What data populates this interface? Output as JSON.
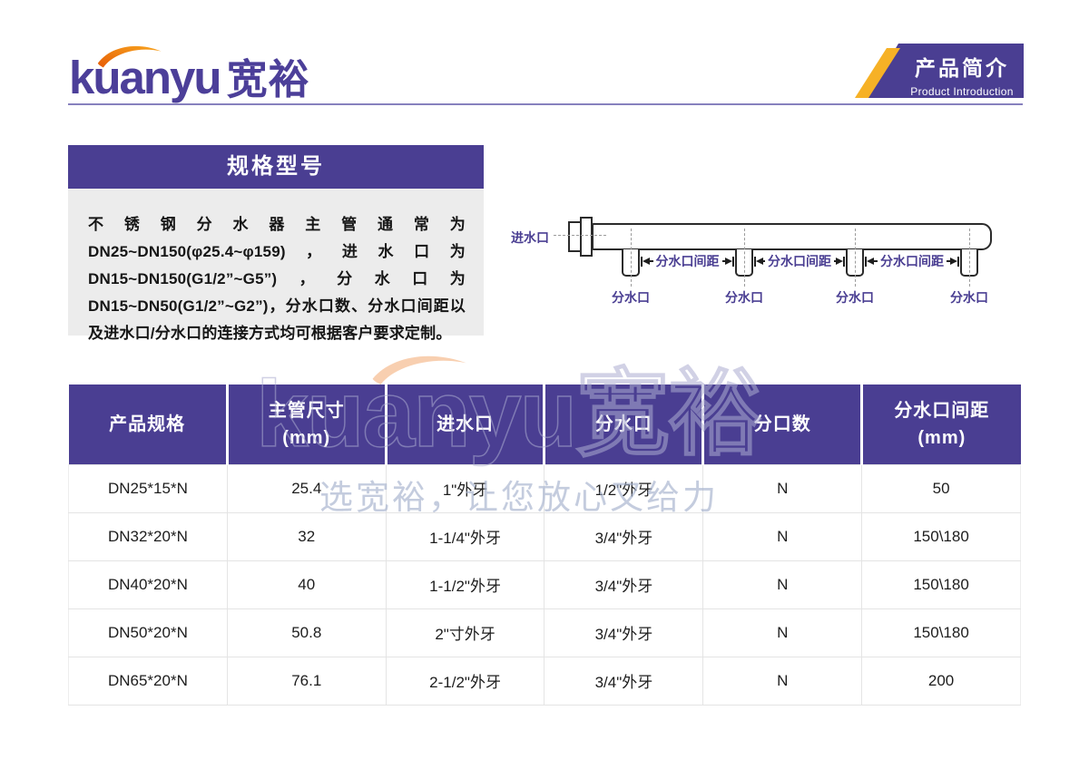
{
  "logo": {
    "latin": "kuanyu",
    "cn": "宽裕"
  },
  "banner": {
    "title": "产品简介",
    "subtitle": "Product Introduction"
  },
  "spec": {
    "title": "规格型号",
    "body": "不锈钢分水器主管通常为DN25~DN150(φ25.4~φ159)，进水口为DN15~DN150(G1/2”~G5”)，分水口为DN15~DN50(G1/2”~G2”)，分水口数、分水口间距以及进水口/分水口的连接方式均可根据客户要求定制。"
  },
  "diagram": {
    "inlet_label": "进水口",
    "outlet_label": "分水口",
    "spacing_label": "分水口间距"
  },
  "table": {
    "headers": [
      "产品规格",
      "主管尺寸\n(mm)",
      "进水口",
      "分水口",
      "分口数",
      "分水口间距\n(mm)"
    ],
    "rows": [
      [
        "DN25*15*N",
        "25.4",
        "1\"外牙",
        "1/2\"外牙",
        "N",
        "50"
      ],
      [
        "DN32*20*N",
        "32",
        "1-1/4\"外牙",
        "3/4\"外牙",
        "N",
        "150\\180"
      ],
      [
        "DN40*20*N",
        "40",
        "1-1/2\"外牙",
        "3/4\"外牙",
        "N",
        "150\\180"
      ],
      [
        "DN50*20*N",
        "50.8",
        "2\"寸外牙",
        "3/4\"外牙",
        "N",
        "150\\180"
      ],
      [
        "DN65*20*N",
        "76.1",
        "2-1/2\"外牙",
        "3/4\"外牙",
        "N",
        "200"
      ]
    ]
  },
  "watermark": {
    "logo_text": "kuanyu宽裕",
    "slogan": "选宽裕，让您放心又给力"
  },
  "colors": {
    "brand_purple": "#4a3e92",
    "accent_yellow": "#f6b126",
    "swoosh_orange": "#ef7c1a",
    "divider_purple": "#8781be",
    "spec_box_gray": "#ececec"
  }
}
